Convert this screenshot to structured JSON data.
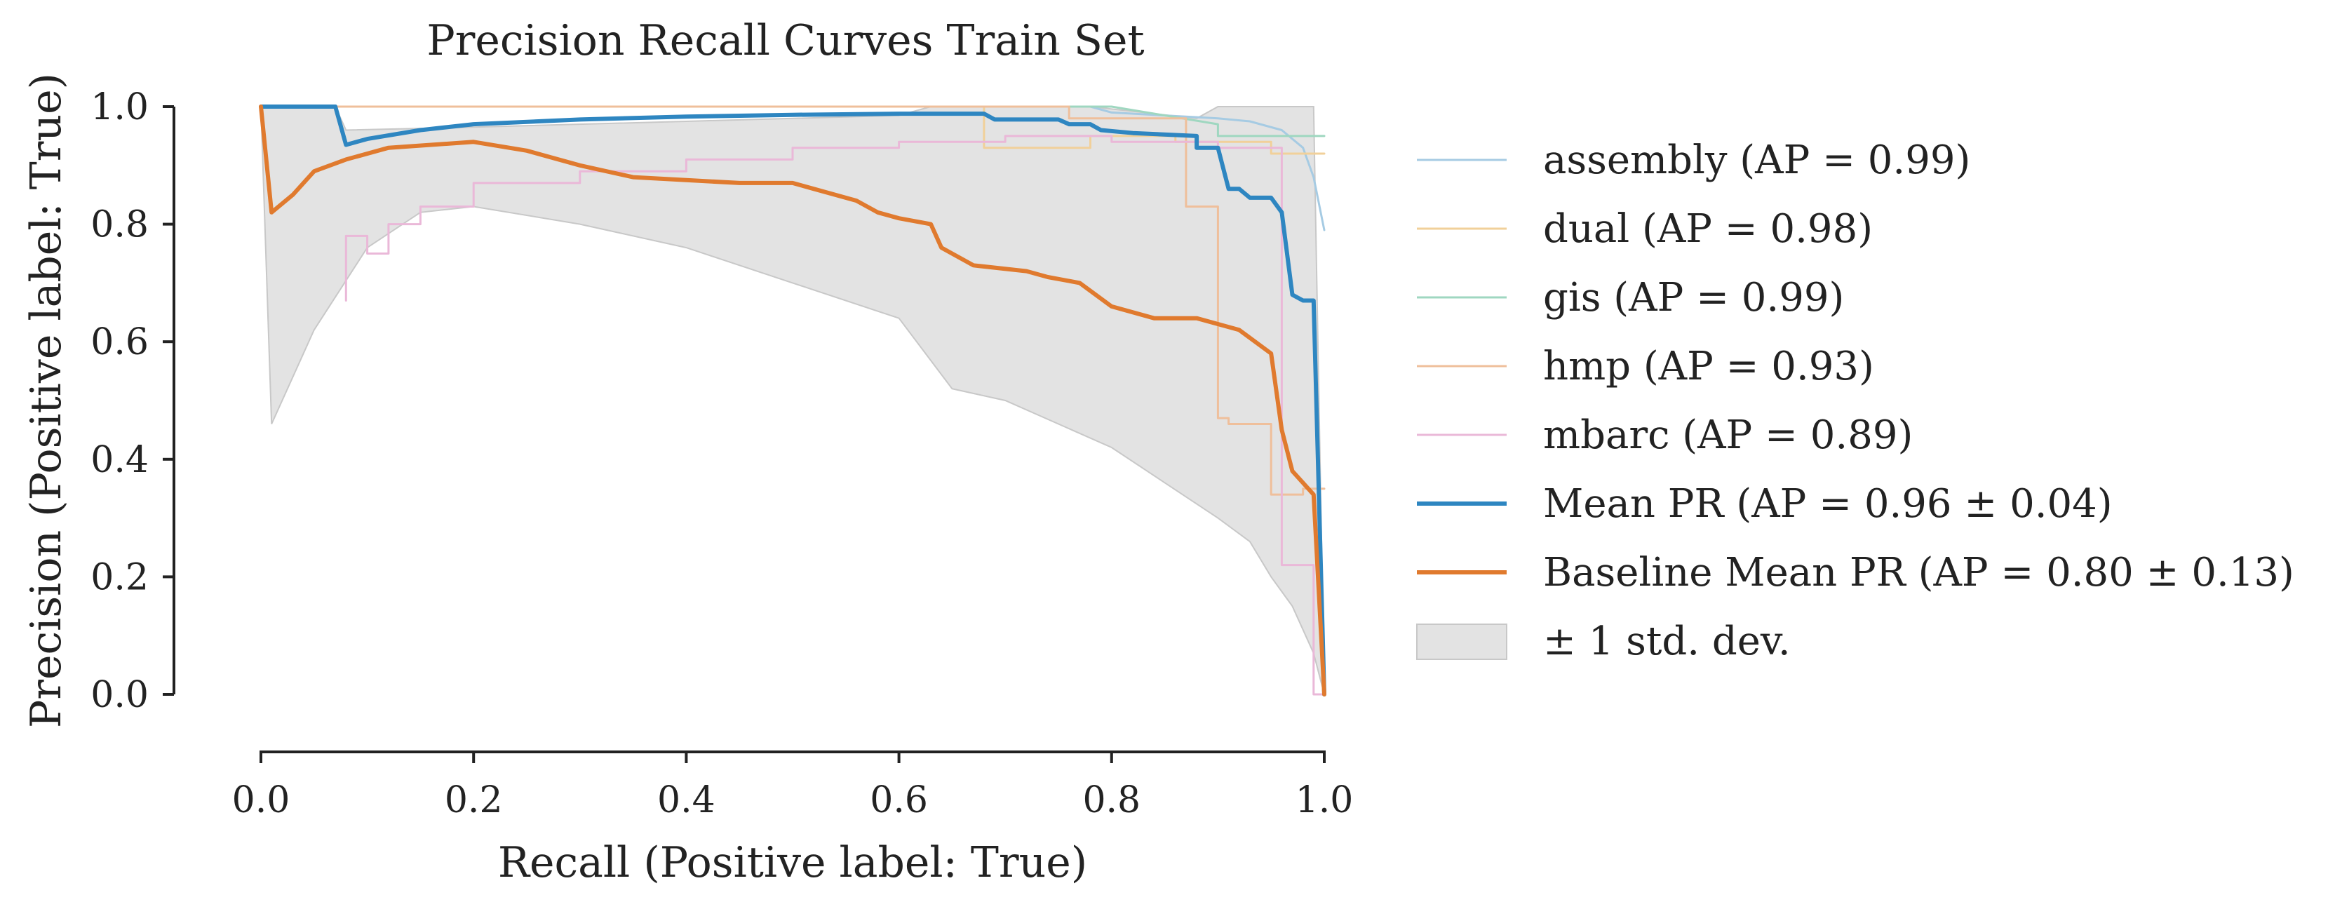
{
  "chart_data": {
    "type": "line",
    "title": "Precision Recall Curves Train Set",
    "xlabel": "Recall (Positive label: True)",
    "ylabel": "Precision (Positive label: True)",
    "xlim": [
      0.0,
      1.0
    ],
    "ylim": [
      0.0,
      1.0
    ],
    "xticks": [
      "0.0",
      "0.2",
      "0.4",
      "0.6",
      "0.8",
      "1.0"
    ],
    "yticks": [
      "0.0",
      "0.2",
      "0.4",
      "0.6",
      "0.8",
      "1.0"
    ],
    "grid": false,
    "legend_position": "right, outside plot",
    "std_band": {
      "name": "± 1 std. dev.",
      "color": "#bdbdbd",
      "upper": [
        [
          0.0,
          1.0
        ],
        [
          0.07,
          1.0
        ],
        [
          0.08,
          0.96
        ],
        [
          0.2,
          0.965
        ],
        [
          0.4,
          0.975
        ],
        [
          0.6,
          0.985
        ],
        [
          0.63,
          1.0
        ],
        [
          0.78,
          1.0
        ],
        [
          0.88,
          0.98
        ],
        [
          0.9,
          1.0
        ],
        [
          0.95,
          1.0
        ],
        [
          0.97,
          1.0
        ],
        [
          0.99,
          1.0
        ],
        [
          1.0,
          0.0
        ]
      ],
      "lower": [
        [
          0.0,
          1.0
        ],
        [
          0.01,
          0.46
        ],
        [
          0.05,
          0.62
        ],
        [
          0.1,
          0.76
        ],
        [
          0.15,
          0.82
        ],
        [
          0.2,
          0.83
        ],
        [
          0.3,
          0.8
        ],
        [
          0.4,
          0.76
        ],
        [
          0.5,
          0.7
        ],
        [
          0.6,
          0.64
        ],
        [
          0.65,
          0.52
        ],
        [
          0.7,
          0.5
        ],
        [
          0.8,
          0.42
        ],
        [
          0.85,
          0.36
        ],
        [
          0.9,
          0.3
        ],
        [
          0.93,
          0.26
        ],
        [
          0.95,
          0.2
        ],
        [
          0.97,
          0.15
        ],
        [
          0.99,
          0.07
        ],
        [
          1.0,
          0.0
        ]
      ]
    },
    "series": [
      {
        "name": "assembly (AP = 0.99)",
        "color": "#a6cbe3",
        "width": 3,
        "values": [
          [
            0.0,
            1.0
          ],
          [
            0.78,
            1.0
          ],
          [
            0.8,
            0.99
          ],
          [
            0.85,
            0.985
          ],
          [
            0.9,
            0.98
          ],
          [
            0.93,
            0.975
          ],
          [
            0.96,
            0.96
          ],
          [
            0.98,
            0.93
          ],
          [
            0.99,
            0.88
          ],
          [
            1.0,
            0.79
          ]
        ]
      },
      {
        "name": "dual (AP = 0.98)",
        "color": "#f1d09a",
        "width": 3,
        "values": [
          [
            0.0,
            1.0
          ],
          [
            0.68,
            1.0
          ],
          [
            0.68,
            0.93
          ],
          [
            0.78,
            0.93
          ],
          [
            0.78,
            0.95
          ],
          [
            0.86,
            0.95
          ],
          [
            0.86,
            0.94
          ],
          [
            0.95,
            0.94
          ],
          [
            0.95,
            0.92
          ],
          [
            1.0,
            0.92
          ]
        ]
      },
      {
        "name": "gis (AP = 0.99)",
        "color": "#9fd7c0",
        "width": 3,
        "values": [
          [
            0.0,
            1.0
          ],
          [
            0.8,
            1.0
          ],
          [
            0.9,
            0.97
          ],
          [
            0.9,
            0.95
          ],
          [
            1.0,
            0.95
          ]
        ]
      },
      {
        "name": "hmp (AP = 0.93)",
        "color": "#efbf9b",
        "width": 3,
        "values": [
          [
            0.0,
            1.0
          ],
          [
            0.76,
            1.0
          ],
          [
            0.76,
            0.98
          ],
          [
            0.87,
            0.98
          ],
          [
            0.87,
            0.83
          ],
          [
            0.9,
            0.83
          ],
          [
            0.9,
            0.47
          ],
          [
            0.91,
            0.47
          ],
          [
            0.91,
            0.46
          ],
          [
            0.95,
            0.46
          ],
          [
            0.95,
            0.34
          ],
          [
            0.98,
            0.34
          ],
          [
            0.98,
            0.35
          ],
          [
            1.0,
            0.35
          ]
        ]
      },
      {
        "name": "mbarc (AP = 0.89)",
        "color": "#eab8d8",
        "width": 3,
        "values": [
          [
            0.08,
            0.67
          ],
          [
            0.08,
            0.78
          ],
          [
            0.1,
            0.78
          ],
          [
            0.1,
            0.75
          ],
          [
            0.12,
            0.75
          ],
          [
            0.12,
            0.8
          ],
          [
            0.15,
            0.8
          ],
          [
            0.15,
            0.83
          ],
          [
            0.2,
            0.83
          ],
          [
            0.2,
            0.87
          ],
          [
            0.3,
            0.87
          ],
          [
            0.3,
            0.89
          ],
          [
            0.4,
            0.89
          ],
          [
            0.4,
            0.91
          ],
          [
            0.5,
            0.91
          ],
          [
            0.5,
            0.93
          ],
          [
            0.6,
            0.93
          ],
          [
            0.6,
            0.94
          ],
          [
            0.7,
            0.94
          ],
          [
            0.7,
            0.95
          ],
          [
            0.8,
            0.95
          ],
          [
            0.8,
            0.94
          ],
          [
            0.9,
            0.94
          ],
          [
            0.9,
            0.93
          ],
          [
            0.96,
            0.93
          ],
          [
            0.96,
            0.22
          ],
          [
            0.99,
            0.22
          ],
          [
            0.99,
            0.0
          ],
          [
            1.0,
            0.0
          ]
        ]
      },
      {
        "name": "Mean PR (AP = 0.96 ± 0.04)",
        "color": "#2e86c1",
        "width": 6,
        "values": [
          [
            0.0,
            1.0
          ],
          [
            0.07,
            1.0
          ],
          [
            0.08,
            0.935
          ],
          [
            0.1,
            0.945
          ],
          [
            0.15,
            0.96
          ],
          [
            0.2,
            0.97
          ],
          [
            0.3,
            0.978
          ],
          [
            0.4,
            0.983
          ],
          [
            0.5,
            0.986
          ],
          [
            0.6,
            0.988
          ],
          [
            0.68,
            0.988
          ],
          [
            0.69,
            0.978
          ],
          [
            0.75,
            0.978
          ],
          [
            0.76,
            0.97
          ],
          [
            0.78,
            0.97
          ],
          [
            0.79,
            0.96
          ],
          [
            0.82,
            0.955
          ],
          [
            0.88,
            0.95
          ],
          [
            0.88,
            0.93
          ],
          [
            0.9,
            0.93
          ],
          [
            0.91,
            0.86
          ],
          [
            0.92,
            0.86
          ],
          [
            0.93,
            0.845
          ],
          [
            0.95,
            0.845
          ],
          [
            0.96,
            0.82
          ],
          [
            0.97,
            0.68
          ],
          [
            0.98,
            0.67
          ],
          [
            0.99,
            0.67
          ],
          [
            1.0,
            0.0
          ]
        ]
      },
      {
        "name": "Baseline Mean PR (AP = 0.80 ± 0.13)",
        "color": "#e07a2e",
        "width": 6,
        "values": [
          [
            0.0,
            1.0
          ],
          [
            0.01,
            0.82
          ],
          [
            0.03,
            0.85
          ],
          [
            0.05,
            0.89
          ],
          [
            0.08,
            0.91
          ],
          [
            0.12,
            0.93
          ],
          [
            0.2,
            0.94
          ],
          [
            0.25,
            0.925
          ],
          [
            0.3,
            0.9
          ],
          [
            0.35,
            0.88
          ],
          [
            0.45,
            0.87
          ],
          [
            0.5,
            0.87
          ],
          [
            0.52,
            0.86
          ],
          [
            0.56,
            0.84
          ],
          [
            0.58,
            0.82
          ],
          [
            0.6,
            0.81
          ],
          [
            0.63,
            0.8
          ],
          [
            0.64,
            0.76
          ],
          [
            0.67,
            0.73
          ],
          [
            0.72,
            0.72
          ],
          [
            0.74,
            0.71
          ],
          [
            0.77,
            0.7
          ],
          [
            0.8,
            0.66
          ],
          [
            0.84,
            0.64
          ],
          [
            0.88,
            0.64
          ],
          [
            0.92,
            0.62
          ],
          [
            0.95,
            0.58
          ],
          [
            0.96,
            0.45
          ],
          [
            0.97,
            0.38
          ],
          [
            0.99,
            0.34
          ],
          [
            1.0,
            0.0
          ]
        ]
      }
    ]
  }
}
